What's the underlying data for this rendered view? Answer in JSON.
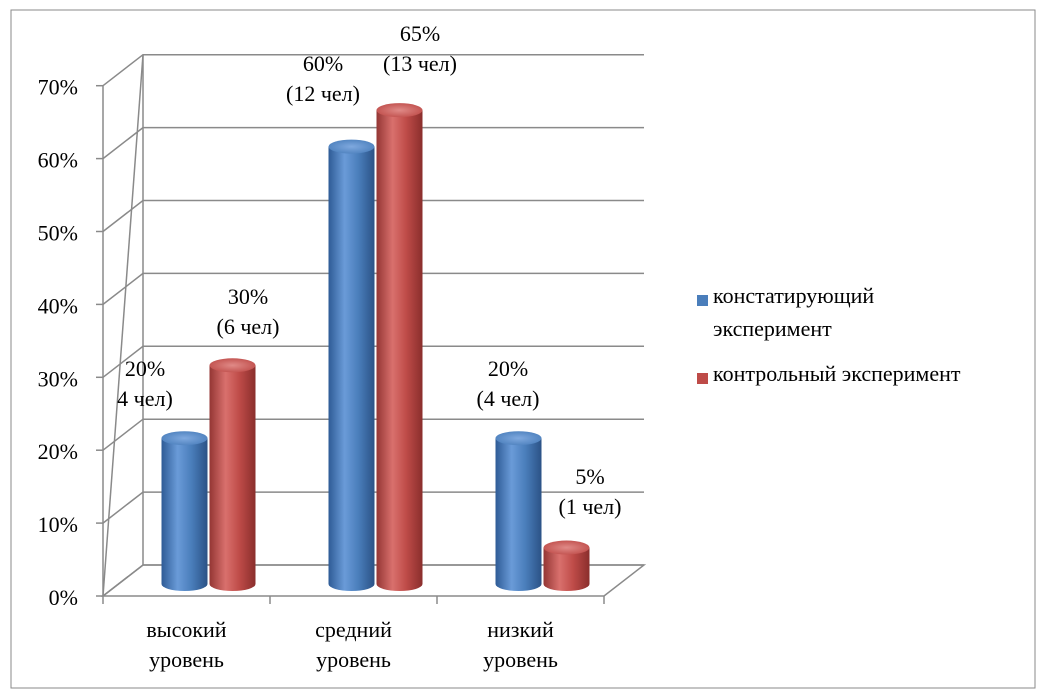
{
  "chart_data": {
    "type": "bar",
    "categories": [
      [
        "высокий",
        "уровень"
      ],
      [
        "средний",
        "уровень"
      ],
      [
        "низкий",
        "уровень"
      ]
    ],
    "series": [
      {
        "name": "констатирующий эксперимент",
        "legend_lines": [
          "констатирующий",
          "эксперимент"
        ],
        "color": "#4A7EBB",
        "values": [
          20,
          60,
          20
        ],
        "labels": [
          [
            "20%",
            "4 чел)"
          ],
          [
            "60%",
            "(12 чел)"
          ],
          [
            "20%",
            "(4 чел)"
          ]
        ]
      },
      {
        "name": "контрольный эксперимент",
        "legend_lines": [
          "контрольный эксперимент"
        ],
        "color": "#BE4B48",
        "values": [
          30,
          65,
          5
        ],
        "labels": [
          [
            "30%",
            "(6 чел)"
          ],
          [
            "65%",
            "(13 чел)"
          ],
          [
            "5%",
            "(1 чел)"
          ]
        ]
      }
    ],
    "yticks": [
      "0%",
      "10%",
      "20%",
      "30%",
      "40%",
      "50%",
      "60%",
      "70%"
    ],
    "ylim": [
      0,
      70
    ],
    "grid": true,
    "legend_position": "right",
    "three_d": true
  }
}
